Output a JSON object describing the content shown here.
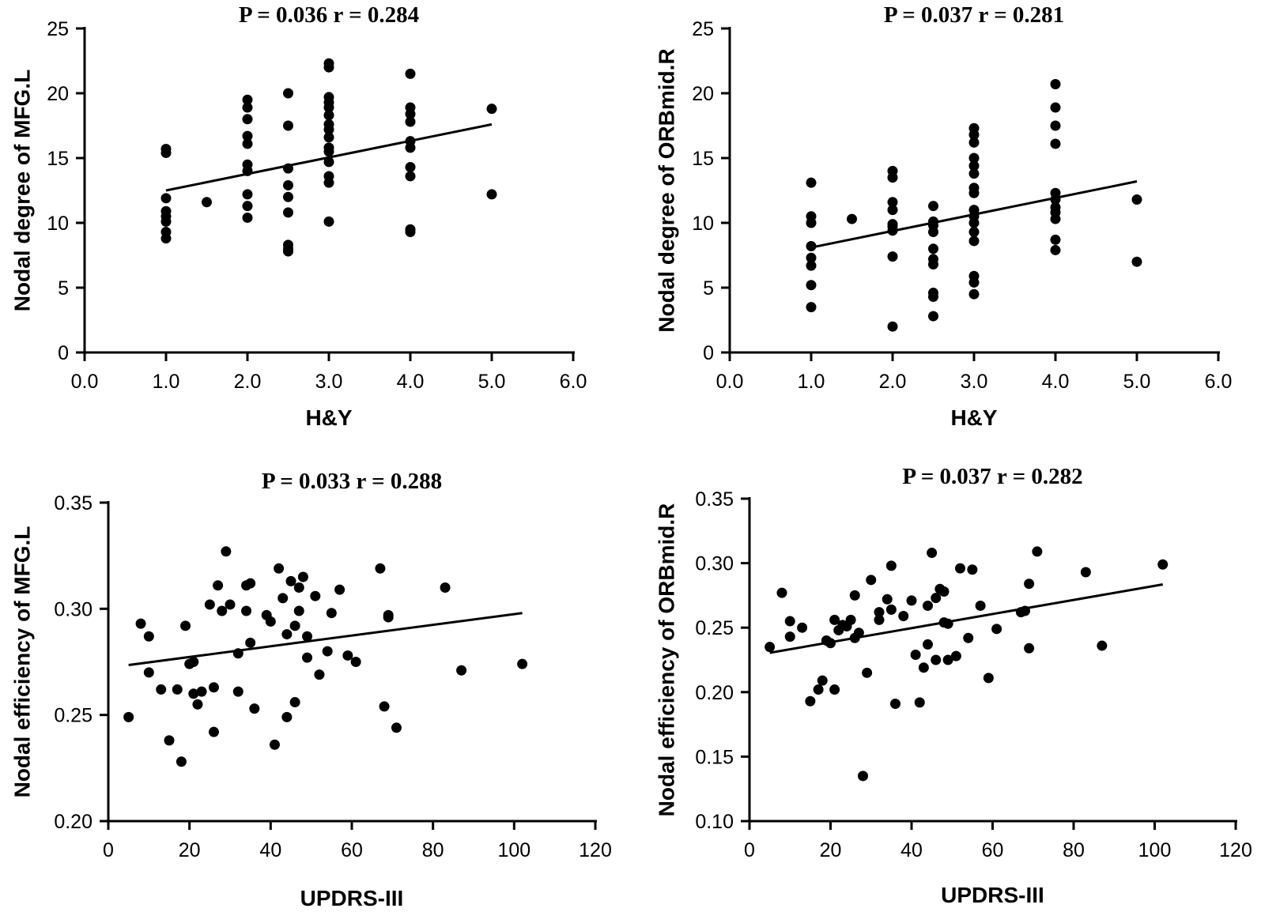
{
  "chart_data": [
    {
      "type": "scatter",
      "title": "P = 0.036 r = 0.284",
      "xlabel": "H&Y",
      "ylabel": "Nodal degree of MFG.L",
      "xlim": [
        0,
        6
      ],
      "ylim": [
        0,
        25
      ],
      "xticks": [
        0,
        1,
        2,
        3,
        4,
        5,
        6
      ],
      "xtick_labels": [
        "0.0",
        "1.0",
        "2.0",
        "3.0",
        "4.0",
        "5.0",
        "6.0"
      ],
      "yticks": [
        0,
        5,
        10,
        15,
        20,
        25
      ],
      "ytick_labels": [
        "0",
        "5",
        "10",
        "15",
        "20",
        "25"
      ],
      "fit_line": [
        [
          1,
          12.5
        ],
        [
          5,
          17.6
        ]
      ],
      "points": [
        [
          1,
          15.7
        ],
        [
          1,
          15.4
        ],
        [
          1,
          11.9
        ],
        [
          1,
          10.9
        ],
        [
          1,
          10.5
        ],
        [
          1,
          10.1
        ],
        [
          1,
          9.3
        ],
        [
          1,
          8.8
        ],
        [
          1.5,
          11.6
        ],
        [
          2,
          19.5
        ],
        [
          2,
          18.9
        ],
        [
          2,
          18.0
        ],
        [
          2,
          16.7
        ],
        [
          2,
          16.1
        ],
        [
          2,
          14.5
        ],
        [
          2,
          14.0
        ],
        [
          2,
          12.2
        ],
        [
          2,
          11.3
        ],
        [
          2,
          10.4
        ],
        [
          2.5,
          20.0
        ],
        [
          2.5,
          17.5
        ],
        [
          2.5,
          14.2
        ],
        [
          2.5,
          12.9
        ],
        [
          2.5,
          12.0
        ],
        [
          2.5,
          10.8
        ],
        [
          2.5,
          8.3
        ],
        [
          2.5,
          8.0
        ],
        [
          2.5,
          7.8
        ],
        [
          3,
          22.3
        ],
        [
          3,
          22.0
        ],
        [
          3,
          19.7
        ],
        [
          3,
          19.3
        ],
        [
          3,
          18.9
        ],
        [
          3,
          18.3
        ],
        [
          3,
          17.6
        ],
        [
          3,
          17.2
        ],
        [
          3,
          16.6
        ],
        [
          3,
          15.8
        ],
        [
          3,
          15.5
        ],
        [
          3,
          14.7
        ],
        [
          3,
          13.6
        ],
        [
          3,
          13.1
        ],
        [
          3,
          10.1
        ],
        [
          4,
          21.5
        ],
        [
          4,
          18.9
        ],
        [
          4,
          18.4
        ],
        [
          4,
          17.8
        ],
        [
          4,
          16.3
        ],
        [
          4,
          15.8
        ],
        [
          4,
          14.3
        ],
        [
          4,
          13.6
        ],
        [
          4,
          9.5
        ],
        [
          4,
          9.3
        ],
        [
          5,
          18.8
        ],
        [
          5,
          12.2
        ]
      ]
    },
    {
      "type": "scatter",
      "title": "P = 0.037 r = 0.281",
      "xlabel": "H&Y",
      "ylabel": "Nodal degree of ORBmid.R",
      "xlim": [
        0,
        6
      ],
      "ylim": [
        0,
        25
      ],
      "xticks": [
        0,
        1,
        2,
        3,
        4,
        5,
        6
      ],
      "xtick_labels": [
        "0.0",
        "1.0",
        "2.0",
        "3.0",
        "4.0",
        "5.0",
        "6.0"
      ],
      "yticks": [
        0,
        5,
        10,
        15,
        20,
        25
      ],
      "ytick_labels": [
        "0",
        "5",
        "10",
        "15",
        "20",
        "25"
      ],
      "fit_line": [
        [
          1,
          8.1
        ],
        [
          5,
          13.2
        ]
      ],
      "points": [
        [
          1,
          13.1
        ],
        [
          1,
          10.5
        ],
        [
          1,
          10.0
        ],
        [
          1,
          8.2
        ],
        [
          1,
          7.3
        ],
        [
          1,
          6.7
        ],
        [
          1,
          5.2
        ],
        [
          1,
          3.5
        ],
        [
          1.5,
          10.3
        ],
        [
          2,
          14.0
        ],
        [
          2,
          13.5
        ],
        [
          2,
          11.6
        ],
        [
          2,
          11.0
        ],
        [
          2,
          9.9
        ],
        [
          2,
          9.7
        ],
        [
          2,
          9.4
        ],
        [
          2,
          7.4
        ],
        [
          2,
          2.0
        ],
        [
          2.5,
          11.3
        ],
        [
          2.5,
          10.1
        ],
        [
          2.5,
          9.8
        ],
        [
          2.5,
          9.3
        ],
        [
          2.5,
          8.0
        ],
        [
          2.5,
          7.2
        ],
        [
          2.5,
          6.8
        ],
        [
          2.5,
          4.6
        ],
        [
          2.5,
          4.3
        ],
        [
          2.5,
          2.8
        ],
        [
          3,
          17.3
        ],
        [
          3,
          16.8
        ],
        [
          3,
          16.2
        ],
        [
          3,
          15.0
        ],
        [
          3,
          14.4
        ],
        [
          3,
          13.8
        ],
        [
          3,
          12.7
        ],
        [
          3,
          12.3
        ],
        [
          3,
          11.0
        ],
        [
          3,
          10.5
        ],
        [
          3,
          10.0
        ],
        [
          3,
          9.3
        ],
        [
          3,
          8.6
        ],
        [
          3,
          5.9
        ],
        [
          3,
          5.4
        ],
        [
          3,
          4.5
        ],
        [
          4,
          20.7
        ],
        [
          4,
          18.9
        ],
        [
          4,
          17.5
        ],
        [
          4,
          16.1
        ],
        [
          4,
          12.3
        ],
        [
          4,
          11.8
        ],
        [
          4,
          11.2
        ],
        [
          4,
          10.8
        ],
        [
          4,
          10.3
        ],
        [
          4,
          8.7
        ],
        [
          4,
          7.9
        ],
        [
          5,
          11.8
        ],
        [
          5,
          7.0
        ]
      ]
    },
    {
      "type": "scatter",
      "title": "P = 0.033 r = 0.288",
      "xlabel": "UPDRS-III",
      "ylabel": "Nodal efficiency of MFG.L",
      "xlim": [
        0,
        120
      ],
      "ylim": [
        0.2,
        0.35
      ],
      "xticks": [
        0,
        20,
        40,
        60,
        80,
        100,
        120
      ],
      "xtick_labels": [
        "0",
        "20",
        "40",
        "60",
        "80",
        "100",
        "120"
      ],
      "yticks": [
        0.2,
        0.25,
        0.3,
        0.35
      ],
      "ytick_labels": [
        "0.20",
        "0.25",
        "0.30",
        "0.35"
      ],
      "fit_line": [
        [
          5,
          0.2735
        ],
        [
          102,
          0.298
        ]
      ],
      "points": [
        [
          5,
          0.249
        ],
        [
          8,
          0.293
        ],
        [
          10,
          0.287
        ],
        [
          10,
          0.27
        ],
        [
          13,
          0.262
        ],
        [
          15,
          0.238
        ],
        [
          17,
          0.262
        ],
        [
          18,
          0.228
        ],
        [
          19,
          0.292
        ],
        [
          20,
          0.274
        ],
        [
          21,
          0.275
        ],
        [
          21,
          0.26
        ],
        [
          22,
          0.255
        ],
        [
          23,
          0.261
        ],
        [
          25,
          0.302
        ],
        [
          26,
          0.263
        ],
        [
          26,
          0.242
        ],
        [
          27,
          0.311
        ],
        [
          28,
          0.299
        ],
        [
          29,
          0.327
        ],
        [
          30,
          0.302
        ],
        [
          32,
          0.279
        ],
        [
          32,
          0.261
        ],
        [
          34,
          0.299
        ],
        [
          34,
          0.311
        ],
        [
          35,
          0.312
        ],
        [
          35,
          0.284
        ],
        [
          36,
          0.253
        ],
        [
          39,
          0.297
        ],
        [
          40,
          0.294
        ],
        [
          41,
          0.236
        ],
        [
          42,
          0.319
        ],
        [
          43,
          0.305
        ],
        [
          44,
          0.288
        ],
        [
          44,
          0.249
        ],
        [
          45,
          0.313
        ],
        [
          46,
          0.256
        ],
        [
          46,
          0.292
        ],
        [
          47,
          0.31
        ],
        [
          47,
          0.299
        ],
        [
          48,
          0.315
        ],
        [
          49,
          0.287
        ],
        [
          49,
          0.277
        ],
        [
          51,
          0.306
        ],
        [
          52,
          0.269
        ],
        [
          54,
          0.28
        ],
        [
          55,
          0.298
        ],
        [
          57,
          0.309
        ],
        [
          59,
          0.278
        ],
        [
          61,
          0.275
        ],
        [
          67,
          0.319
        ],
        [
          68,
          0.254
        ],
        [
          69,
          0.297
        ],
        [
          69,
          0.296
        ],
        [
          71,
          0.244
        ],
        [
          83,
          0.31
        ],
        [
          87,
          0.271
        ],
        [
          102,
          0.274
        ]
      ]
    },
    {
      "type": "scatter",
      "title": "P = 0.037 r = 0.282",
      "xlabel": "UPDRS-III",
      "ylabel": "Nodal efficiency of ORBmid.R",
      "xlim": [
        0,
        120
      ],
      "ylim": [
        0.1,
        0.35
      ],
      "xticks": [
        0,
        20,
        40,
        60,
        80,
        100,
        120
      ],
      "xtick_labels": [
        "0",
        "20",
        "40",
        "60",
        "80",
        "100",
        "120"
      ],
      "yticks": [
        0.1,
        0.15,
        0.2,
        0.25,
        0.3,
        0.35
      ],
      "ytick_labels": [
        "0.10",
        "0.15",
        "0.20",
        "0.25",
        "0.30",
        "0.35"
      ],
      "fit_line": [
        [
          5,
          0.2305
        ],
        [
          102,
          0.2835
        ]
      ],
      "points": [
        [
          5,
          0.235
        ],
        [
          8,
          0.277
        ],
        [
          10,
          0.255
        ],
        [
          10,
          0.243
        ],
        [
          13,
          0.25
        ],
        [
          15,
          0.193
        ],
        [
          17,
          0.202
        ],
        [
          18,
          0.209
        ],
        [
          19,
          0.24
        ],
        [
          20,
          0.238
        ],
        [
          21,
          0.256
        ],
        [
          21,
          0.202
        ],
        [
          22,
          0.248
        ],
        [
          23,
          0.252
        ],
        [
          24,
          0.251
        ],
        [
          25,
          0.256
        ],
        [
          26,
          0.275
        ],
        [
          26,
          0.242
        ],
        [
          27,
          0.246
        ],
        [
          28,
          0.135
        ],
        [
          29,
          0.215
        ],
        [
          30,
          0.287
        ],
        [
          32,
          0.256
        ],
        [
          32,
          0.262
        ],
        [
          34,
          0.272
        ],
        [
          35,
          0.264
        ],
        [
          35,
          0.298
        ],
        [
          36,
          0.191
        ],
        [
          38,
          0.259
        ],
        [
          40,
          0.271
        ],
        [
          41,
          0.229
        ],
        [
          42,
          0.192
        ],
        [
          43,
          0.219
        ],
        [
          44,
          0.237
        ],
        [
          44,
          0.267
        ],
        [
          45,
          0.308
        ],
        [
          46,
          0.225
        ],
        [
          46,
          0.273
        ],
        [
          47,
          0.28
        ],
        [
          48,
          0.254
        ],
        [
          48,
          0.278
        ],
        [
          49,
          0.225
        ],
        [
          49,
          0.253
        ],
        [
          51,
          0.228
        ],
        [
          52,
          0.296
        ],
        [
          54,
          0.242
        ],
        [
          55,
          0.295
        ],
        [
          57,
          0.267
        ],
        [
          59,
          0.211
        ],
        [
          61,
          0.249
        ],
        [
          67,
          0.262
        ],
        [
          68,
          0.263
        ],
        [
          69,
          0.284
        ],
        [
          69,
          0.234
        ],
        [
          71,
          0.309
        ],
        [
          83,
          0.293
        ],
        [
          87,
          0.236
        ],
        [
          102,
          0.299
        ]
      ]
    }
  ]
}
